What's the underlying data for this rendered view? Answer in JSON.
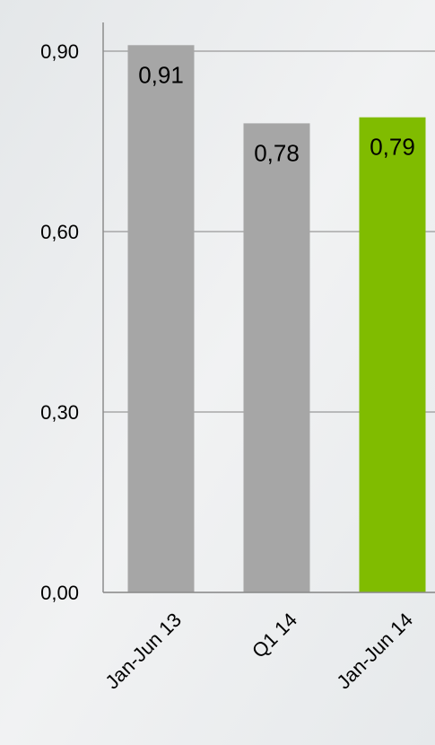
{
  "chart_data": {
    "type": "bar",
    "categories": [
      "Jan-Jun 13",
      "Q1 14",
      "Jan-Jun 14"
    ],
    "values": [
      0.91,
      0.78,
      0.79
    ],
    "value_labels": [
      "0,91",
      "0,78",
      "0,79"
    ],
    "colors": [
      "#a6a6a6",
      "#a6a6a6",
      "#80bc00"
    ],
    "ylim": [
      0,
      0.95
    ],
    "yticks": [
      {
        "value": 0,
        "label": "0,00"
      },
      {
        "value": 0.3,
        "label": "0,30"
      },
      {
        "value": 0.6,
        "label": "0,60"
      },
      {
        "value": 0.9,
        "label": "0,90"
      }
    ],
    "grid": true
  }
}
